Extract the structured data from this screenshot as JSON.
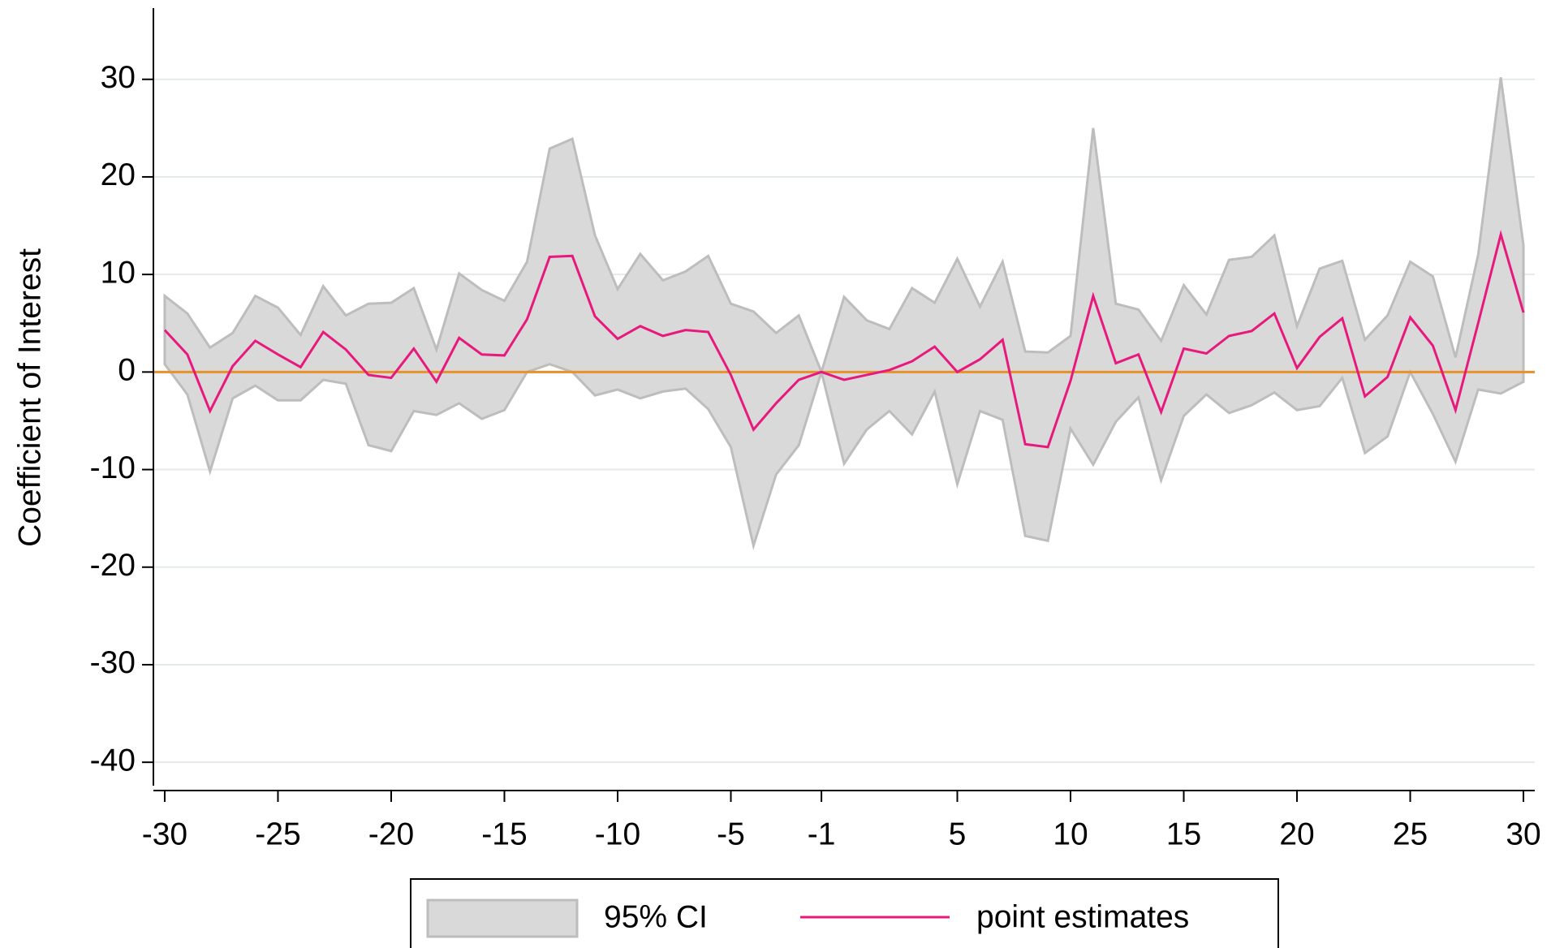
{
  "chart_data": {
    "type": "line",
    "ylabel": "Coefficient of Interest",
    "x": [
      -30,
      -29,
      -28,
      -27,
      -26,
      -25,
      -24,
      -23,
      -22,
      -21,
      -20,
      -19,
      -18,
      -17,
      -16,
      -15,
      -14,
      -13,
      -12,
      -11,
      -10,
      -9,
      -8,
      -7,
      -6,
      -5,
      -4,
      -3,
      -2,
      -1,
      0,
      1,
      2,
      3,
      4,
      5,
      6,
      7,
      8,
      9,
      10,
      11,
      12,
      13,
      14,
      15,
      16,
      17,
      18,
      19,
      20,
      21,
      22,
      23,
      24,
      25,
      26,
      27,
      28,
      29,
      30
    ],
    "series": [
      {
        "name": "95% CI",
        "type": "area",
        "color": "#d9d9d9",
        "edge_color": "#bdbdbd",
        "upper": [
          7.8,
          6,
          2.5,
          4,
          7.8,
          6.6,
          3.8,
          8.8,
          5.8,
          7,
          7.1,
          8.6,
          2.3,
          10.1,
          8.4,
          7.3,
          11.3,
          22.9,
          23.9,
          14,
          8.5,
          12.1,
          9.4,
          10.3,
          11.9,
          7,
          6.2,
          4,
          5.8,
          0,
          7.7,
          5.3,
          4.4,
          8.6,
          7.1,
          11.6,
          6.7,
          11.3,
          2.1,
          2,
          3.7,
          25,
          7,
          6.4,
          3.2,
          8.9,
          5.9,
          11.5,
          11.8,
          14,
          4.7,
          10.6,
          11.4,
          3.3,
          5.8,
          11.3,
          9.8,
          1.5,
          12,
          30.2,
          13
        ],
        "lower": [
          0.8,
          -2.3,
          -10.2,
          -2.7,
          -1.4,
          -2.9,
          -2.9,
          -0.8,
          -1.2,
          -7.5,
          -8.1,
          -4,
          -4.4,
          -3.2,
          -4.8,
          -3.9,
          0,
          0.8,
          0,
          -2.4,
          -1.8,
          -2.7,
          -2,
          -1.7,
          -3.8,
          -7.7,
          -17.8,
          -10.5,
          -7.5,
          0,
          -9.4,
          -5.9,
          -4,
          -6.4,
          -2,
          -11.5,
          -4,
          -4.9,
          -16.8,
          -17.3,
          -5.8,
          -9.5,
          -5.1,
          -2.6,
          -11.1,
          -4.5,
          -2.3,
          -4.2,
          -3.4,
          -2.1,
          -3.9,
          -3.5,
          -0.6,
          -8.3,
          -6.6,
          0,
          -4.3,
          -9.2,
          -1.8,
          -2.2,
          -1
        ]
      },
      {
        "name": "point estimates",
        "color": "#e8197d",
        "values": [
          4.3,
          1.8,
          -4,
          0.6,
          3.2,
          1.8,
          0.5,
          4.1,
          2.3,
          -0.3,
          -0.6,
          2.4,
          -1,
          3.5,
          1.8,
          1.7,
          5.4,
          11.8,
          11.9,
          5.7,
          3.4,
          4.7,
          3.7,
          4.3,
          4.1,
          -0.3,
          -5.9,
          -3.2,
          -0.8,
          0,
          -0.8,
          -0.3,
          0.2,
          1.1,
          2.6,
          0,
          1.3,
          3.3,
          -7.4,
          -7.7,
          -0.9,
          7.8,
          0.9,
          1.8,
          -4.1,
          2.4,
          1.9,
          3.7,
          4.2,
          6,
          0.4,
          3.6,
          5.5,
          -2.5,
          -0.5,
          5.6,
          2.7,
          -3.9,
          5,
          14.1,
          6.1
        ]
      }
    ],
    "hline": {
      "value": 0,
      "color": "#e8902a"
    },
    "xlim": [
      -30.5,
      30.5
    ],
    "xticks": [
      -30,
      -25,
      -20,
      -15,
      -10,
      -5,
      -1,
      5,
      10,
      15,
      20,
      25,
      30
    ],
    "ylim": [
      -42.4,
      37.3
    ],
    "yticks": [
      -40,
      -30,
      -20,
      -10,
      0,
      10,
      20,
      30
    ],
    "grid": true,
    "grid_color": "#e4eaea",
    "legend": "bottom"
  }
}
